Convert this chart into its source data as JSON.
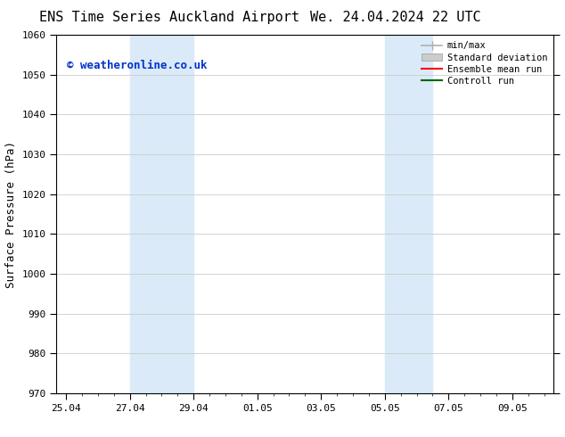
{
  "title_left": "ENS Time Series Auckland Airport",
  "title_right": "We. 24.04.2024 22 UTC",
  "ylabel": "Surface Pressure (hPa)",
  "ylim": [
    970,
    1060
  ],
  "yticks": [
    970,
    980,
    990,
    1000,
    1010,
    1020,
    1030,
    1040,
    1050,
    1060
  ],
  "xlabel_ticks": [
    "25.04",
    "27.04",
    "29.04",
    "01.05",
    "03.05",
    "05.05",
    "07.05",
    "09.05"
  ],
  "x_tick_positions": [
    0,
    2,
    4,
    6,
    8,
    10,
    12,
    14
  ],
  "xmin": -0.3,
  "xmax": 15.3,
  "shaded_regions": [
    {
      "x_start": 2.0,
      "x_end": 4.0,
      "color": "#daeaf8"
    },
    {
      "x_start": 10.0,
      "x_end": 11.5,
      "color": "#daeaf8"
    }
  ],
  "watermark_text": "© weatheronline.co.uk",
  "watermark_color": "#0033cc",
  "watermark_fontsize": 9,
  "legend_entries": [
    {
      "label": "min/max",
      "color": "#b0b0b0",
      "lw": 1.2,
      "style": "minmax"
    },
    {
      "label": "Standard deviation",
      "color": "#cccccc",
      "lw": 6,
      "style": "rect"
    },
    {
      "label": "Ensemble mean run",
      "color": "#ff0000",
      "lw": 1.5,
      "style": "line"
    },
    {
      "label": "Controll run",
      "color": "#006600",
      "lw": 1.5,
      "style": "line"
    }
  ],
  "bg_color": "#ffffff",
  "grid_color": "#cccccc",
  "title_fontsize": 11,
  "axis_label_fontsize": 9,
  "tick_fontsize": 8,
  "legend_fontsize": 7.5
}
